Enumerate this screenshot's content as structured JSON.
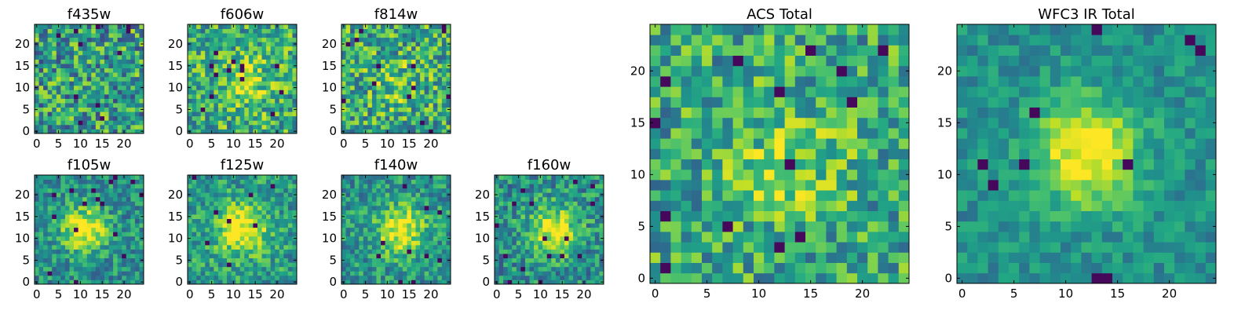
{
  "figure": {
    "colors": {
      "dark": "#440154",
      "mid_low": "#26828e",
      "mid": "#35b779",
      "high": "#b5de2b",
      "max": "#fde725"
    }
  },
  "chart_data": [
    {
      "type": "heatmap",
      "title": "f435w",
      "grid": 25,
      "xticks": [
        0,
        5,
        10,
        15,
        20
      ],
      "yticks": [
        0,
        5,
        10,
        15,
        20
      ],
      "blob": {
        "amp": 0.0,
        "cx": 12,
        "cy": 12,
        "sigma": 4
      },
      "noise": 0.34,
      "base": 0.55,
      "seed": 11,
      "deep_lows": 0.025
    },
    {
      "type": "heatmap",
      "title": "f606w",
      "grid": 25,
      "xticks": [
        0,
        5,
        10,
        15,
        20
      ],
      "yticks": [
        0,
        5,
        10,
        15,
        20
      ],
      "blob": {
        "amp": 0.25,
        "cx": 13,
        "cy": 11,
        "sigma": 4
      },
      "noise": 0.3,
      "base": 0.62,
      "seed": 23,
      "deep_lows": 0.015
    },
    {
      "type": "heatmap",
      "title": "f814w",
      "grid": 25,
      "xticks": [
        0,
        5,
        10,
        15,
        20
      ],
      "yticks": [
        0,
        5,
        10,
        15,
        20
      ],
      "blob": {
        "amp": 0.15,
        "cx": 12,
        "cy": 11,
        "sigma": 4
      },
      "noise": 0.32,
      "base": 0.6,
      "seed": 37,
      "deep_lows": 0.02
    },
    {
      "type": "heatmap",
      "title": "f105w",
      "grid": 25,
      "xticks": [
        0,
        5,
        10,
        15,
        20
      ],
      "yticks": [
        0,
        5,
        10,
        15,
        20
      ],
      "blob": {
        "amp": 0.55,
        "cx": 11,
        "cy": 12,
        "sigma": 3.5
      },
      "noise": 0.22,
      "base": 0.5,
      "seed": 41,
      "deep_lows": 0.02
    },
    {
      "type": "heatmap",
      "title": "f125w",
      "grid": 25,
      "xticks": [
        0,
        5,
        10,
        15,
        20
      ],
      "yticks": [
        0,
        5,
        10,
        15,
        20
      ],
      "blob": {
        "amp": 0.5,
        "cx": 12,
        "cy": 12,
        "sigma": 4
      },
      "noise": 0.22,
      "base": 0.55,
      "seed": 53,
      "deep_lows": 0.015
    },
    {
      "type": "heatmap",
      "title": "f140w",
      "grid": 25,
      "xticks": [
        0,
        5,
        10,
        15,
        20
      ],
      "yticks": [
        0,
        5,
        10,
        15,
        20
      ],
      "blob": {
        "amp": 0.5,
        "cx": 13,
        "cy": 12,
        "sigma": 3.8
      },
      "noise": 0.22,
      "base": 0.52,
      "seed": 67,
      "deep_lows": 0.015
    },
    {
      "type": "heatmap",
      "title": "f160w",
      "grid": 25,
      "xticks": [
        0,
        5,
        10,
        15,
        20
      ],
      "yticks": [
        0,
        5,
        10,
        15,
        20
      ],
      "blob": {
        "amp": 0.5,
        "cx": 13,
        "cy": 12,
        "sigma": 3.8
      },
      "noise": 0.24,
      "base": 0.5,
      "seed": 79,
      "deep_lows": 0.03
    },
    {
      "type": "heatmap",
      "title": "ACS Total",
      "grid": 25,
      "xticks": [
        0,
        5,
        10,
        15,
        20
      ],
      "yticks": [
        0,
        5,
        10,
        15,
        20
      ],
      "blob": {
        "amp": 0.2,
        "cx": 13,
        "cy": 11,
        "sigma": 4
      },
      "noise": 0.28,
      "base": 0.6,
      "seed": 89,
      "deep_lows": 0.018
    },
    {
      "type": "heatmap",
      "title": "WFC3 IR Total",
      "grid": 25,
      "xticks": [
        0,
        5,
        10,
        15,
        20
      ],
      "yticks": [
        0,
        5,
        10,
        15,
        20
      ],
      "blob": {
        "amp": 0.55,
        "cx": 12,
        "cy": 12,
        "sigma": 3.5
      },
      "noise": 0.14,
      "base": 0.5,
      "seed": 97,
      "deep_lows": 0.02
    }
  ]
}
